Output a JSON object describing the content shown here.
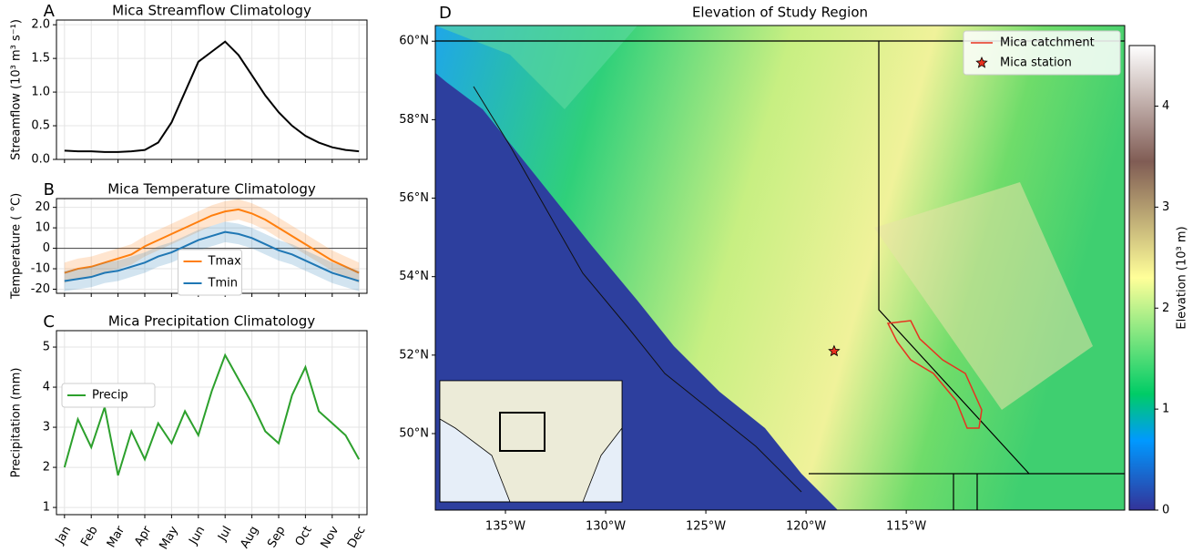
{
  "chart_data": [
    {
      "type": "line",
      "panel_label": "A",
      "title": "Mica Streamflow Climatology",
      "y_label": "Streamflow (10³ m³ s⁻¹)",
      "x": [
        0,
        0.5,
        1,
        1.5,
        2,
        2.5,
        3,
        3.5,
        4,
        4.5,
        5,
        5.5,
        6,
        6.5,
        7,
        7.5,
        8,
        8.5,
        9,
        9.5,
        10,
        10.5,
        11
      ],
      "series": [
        {
          "name": null,
          "color": "#000000",
          "values": [
            0.13,
            0.12,
            0.12,
            0.11,
            0.11,
            0.12,
            0.14,
            0.25,
            0.55,
            1.0,
            1.45,
            1.6,
            1.75,
            1.55,
            1.25,
            0.95,
            0.7,
            0.5,
            0.35,
            0.25,
            0.18,
            0.14,
            0.12
          ]
        }
      ],
      "xlim": [
        -0.3,
        11.3
      ],
      "xticks": [
        0,
        1,
        2,
        3,
        4,
        5,
        6,
        7,
        8,
        9,
        10,
        11
      ],
      "show_xtick_labels": false,
      "ylim": [
        0,
        2.07
      ],
      "yticks": [
        {
          "value": 0,
          "label": "0.0"
        },
        {
          "value": 0.5,
          "label": "0.5"
        },
        {
          "value": 1,
          "label": "1.0"
        },
        {
          "value": 1.5,
          "label": "1.5"
        },
        {
          "value": 2,
          "label": "2.0"
        }
      ],
      "grid": true
    },
    {
      "type": "line",
      "panel_label": "B",
      "title": "Mica Temperature Climatology",
      "y_label": "Temperature ( °C)",
      "x": [
        0,
        0.5,
        1,
        1.5,
        2,
        2.5,
        3,
        3.5,
        4,
        4.5,
        5,
        5.5,
        6,
        6.5,
        7,
        7.5,
        8,
        8.5,
        9,
        9.5,
        10,
        10.5,
        11
      ],
      "series": [
        {
          "name": "Tmax",
          "color": "#ff7f0e",
          "values": [
            -12,
            -10,
            -9,
            -7,
            -5,
            -3,
            1,
            4,
            7,
            10,
            13,
            16,
            18,
            19,
            17,
            14,
            10,
            6,
            2,
            -2,
            -6,
            -9,
            -12
          ],
          "spread": [
            5,
            5,
            5,
            5,
            5,
            5,
            5,
            5,
            5,
            5,
            5,
            5,
            5,
            5,
            5,
            5,
            5,
            5,
            5,
            5,
            5,
            5,
            5
          ]
        },
        {
          "name": "Tmin",
          "color": "#1f77b4",
          "values": [
            -16,
            -15,
            -14,
            -12,
            -11,
            -9,
            -7,
            -4,
            -2,
            1,
            4,
            6,
            8,
            7,
            5,
            2,
            -1,
            -3,
            -6,
            -9,
            -12,
            -14,
            -16
          ],
          "spread": [
            5,
            5,
            5,
            5,
            5,
            5,
            5,
            5,
            5,
            5,
            5,
            5,
            5,
            5,
            5,
            5,
            5,
            5,
            5,
            5,
            5,
            5,
            5
          ]
        }
      ],
      "reference_line": 0,
      "legend": "lower center",
      "xlim": [
        -0.3,
        11.3
      ],
      "xticks": [
        0,
        1,
        2,
        3,
        4,
        5,
        6,
        7,
        8,
        9,
        10,
        11
      ],
      "show_xtick_labels": false,
      "ylim": [
        -22,
        24.3
      ],
      "yticks": [
        -20,
        -10,
        0,
        10,
        20
      ],
      "grid": true
    },
    {
      "type": "line",
      "panel_label": "C",
      "title": "Mica Precipitation Climatology",
      "y_label": "Precipitation (mm)",
      "x": [
        0,
        0.5,
        1,
        1.5,
        2,
        2.5,
        3,
        3.5,
        4,
        4.5,
        5,
        5.5,
        6,
        6.5,
        7,
        7.5,
        8,
        8.5,
        9,
        9.5,
        10,
        10.5,
        11
      ],
      "series": [
        {
          "name": "Precip",
          "color": "#2ca02c",
          "values": [
            2.0,
            3.2,
            2.5,
            3.5,
            1.8,
            2.9,
            2.2,
            3.1,
            2.6,
            3.4,
            2.8,
            3.9,
            4.8,
            4.2,
            3.6,
            2.9,
            2.6,
            3.8,
            4.5,
            3.4,
            3.1,
            2.8,
            2.2
          ]
        }
      ],
      "legend": "upper left",
      "xlim": [
        -0.3,
        11.3
      ],
      "xticks": [
        {
          "value": 0,
          "label": "Jan"
        },
        {
          "value": 1,
          "label": "Feb"
        },
        {
          "value": 2,
          "label": "Mar"
        },
        {
          "value": 3,
          "label": "Apr"
        },
        {
          "value": 4,
          "label": "May"
        },
        {
          "value": 5,
          "label": "Jun"
        },
        {
          "value": 6,
          "label": "Jul"
        },
        {
          "value": 7,
          "label": "Aug"
        },
        {
          "value": 8,
          "label": "Sep"
        },
        {
          "value": 9,
          "label": "Oct"
        },
        {
          "value": 10,
          "label": "Nov"
        },
        {
          "value": 11,
          "label": "Dec"
        }
      ],
      "show_xtick_labels": true,
      "ylim": [
        0.82,
        5.41
      ],
      "yticks": [
        1,
        2,
        3,
        4,
        5
      ],
      "grid": true
    },
    {
      "type": "map",
      "panel_label": "D",
      "title": "Elevation of Study Region",
      "xlim": [
        -138.5,
        -104.1
      ],
      "xticks": [
        {
          "value": -135,
          "label": "135°W"
        },
        {
          "value": -130,
          "label": "130°W"
        },
        {
          "value": -125,
          "label": "125°W"
        },
        {
          "value": -120,
          "label": "120°W"
        },
        {
          "value": -115,
          "label": "115°W"
        }
      ],
      "ylim": [
        48.05,
        60.4
      ],
      "yticks": [
        {
          "value": 50,
          "label": "50°N"
        },
        {
          "value": 52,
          "label": "52°N"
        },
        {
          "value": 54,
          "label": "54°N"
        },
        {
          "value": 56,
          "label": "56°N"
        },
        {
          "value": 58,
          "label": "58°N"
        },
        {
          "value": 60,
          "label": "60°N"
        }
      ],
      "legend_entries": [
        {
          "name": "Mica catchment",
          "color": "#e8311f"
        },
        {
          "name": "Mica station",
          "color": "#e8311f"
        }
      ],
      "station": [
        -118.6,
        52.1
      ],
      "colorbar_label": "Elevation (10³ m)",
      "colorbar_lim": [
        0,
        4.6
      ],
      "colorbar_ticks": [
        0,
        1,
        2,
        3,
        4
      ]
    }
  ]
}
